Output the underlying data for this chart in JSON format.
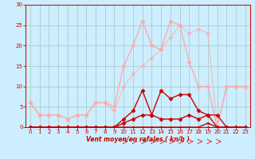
{
  "bg_color": "#cceeff",
  "grid_color": "#aacccc",
  "text_color": "#cc0000",
  "xlabel": "Vent moyen/en rafales ( kn/h )",
  "xlim": [
    -0.5,
    23.5
  ],
  "ylim": [
    0,
    30
  ],
  "yticks": [
    0,
    5,
    10,
    15,
    20,
    25,
    30
  ],
  "xticks": [
    0,
    1,
    2,
    3,
    4,
    5,
    6,
    7,
    8,
    9,
    10,
    11,
    12,
    13,
    14,
    15,
    16,
    17,
    18,
    19,
    20,
    21,
    22,
    23
  ],
  "series": [
    {
      "x": [
        0,
        1,
        2,
        3,
        4,
        5,
        6,
        7,
        8,
        9,
        10,
        11,
        12,
        13,
        14,
        15,
        16,
        17,
        18,
        19,
        20,
        21,
        22,
        23
      ],
      "y": [
        0,
        0,
        0,
        0,
        0,
        0,
        0,
        0,
        0,
        0,
        0,
        0,
        0,
        0,
        0,
        0,
        0,
        0,
        0,
        0,
        0,
        0,
        0,
        0
      ],
      "color": "#cc0000",
      "lw": 1.0,
      "marker": "s",
      "ms": 2.0,
      "alpha": 1.0,
      "zorder": 3
    },
    {
      "x": [
        0,
        1,
        2,
        3,
        4,
        5,
        6,
        7,
        8,
        9,
        10,
        11,
        12,
        13,
        14,
        15,
        16,
        17,
        18,
        19,
        20,
        21,
        22,
        23
      ],
      "y": [
        0,
        0,
        0,
        0,
        0,
        0,
        0,
        0,
        0,
        0,
        0,
        0,
        0,
        0,
        0,
        0,
        0,
        0,
        0,
        1,
        0,
        0,
        0,
        0
      ],
      "color": "#cc0000",
      "lw": 1.0,
      "marker": "s",
      "ms": 2.0,
      "alpha": 1.0,
      "zorder": 3
    },
    {
      "x": [
        0,
        1,
        2,
        3,
        4,
        5,
        6,
        7,
        8,
        9,
        10,
        11,
        12,
        13,
        14,
        15,
        16,
        17,
        18,
        19,
        20,
        21,
        22,
        23
      ],
      "y": [
        0,
        0,
        0,
        0,
        0,
        0,
        0,
        0,
        0,
        0,
        2,
        4,
        9,
        3,
        9,
        7,
        8,
        8,
        4,
        3,
        0,
        0,
        0,
        0
      ],
      "color": "#cc0000",
      "lw": 1.0,
      "marker": "D",
      "ms": 2.5,
      "alpha": 1.0,
      "zorder": 4
    },
    {
      "x": [
        0,
        1,
        2,
        3,
        4,
        5,
        6,
        7,
        8,
        9,
        10,
        11,
        12,
        13,
        14,
        15,
        16,
        17,
        18,
        19,
        20,
        21,
        22,
        23
      ],
      "y": [
        0,
        0,
        0,
        0,
        0,
        0,
        0,
        0,
        0,
        0,
        1,
        2,
        3,
        3,
        2,
        2,
        2,
        3,
        2,
        3,
        3,
        0,
        0,
        0
      ],
      "color": "#cc0000",
      "lw": 1.0,
      "marker": "D",
      "ms": 2.5,
      "alpha": 1.0,
      "zorder": 4
    },
    {
      "x": [
        0,
        1,
        2,
        3,
        4,
        5,
        6,
        7,
        8,
        9,
        10,
        11,
        12,
        13,
        14,
        15,
        16,
        17,
        18,
        19,
        20,
        21,
        22,
        23
      ],
      "y": [
        6,
        3,
        3,
        3,
        2,
        3,
        3,
        6,
        6,
        5,
        15,
        20,
        26,
        20,
        19,
        26,
        25,
        16,
        10,
        10,
        0,
        10,
        10,
        10
      ],
      "color": "#ffaaaa",
      "lw": 1.0,
      "marker": "D",
      "ms": 2.5,
      "alpha": 1.0,
      "zorder": 2
    },
    {
      "x": [
        0,
        1,
        2,
        3,
        4,
        5,
        6,
        7,
        8,
        9,
        10,
        11,
        12,
        13,
        14,
        15,
        16,
        17,
        18,
        19,
        20,
        21,
        22,
        23
      ],
      "y": [
        6,
        3,
        3,
        3,
        2,
        3,
        3,
        6,
        6,
        4,
        10,
        13,
        15,
        17,
        19,
        22,
        25,
        23,
        24,
        23,
        0,
        10,
        10,
        10
      ],
      "color": "#ffaaaa",
      "lw": 1.0,
      "marker": "D",
      "ms": 2.5,
      "alpha": 0.6,
      "zorder": 2
    }
  ],
  "arrows_x": [
    10,
    11,
    12,
    13,
    14,
    15,
    16,
    17,
    18,
    19,
    20
  ]
}
